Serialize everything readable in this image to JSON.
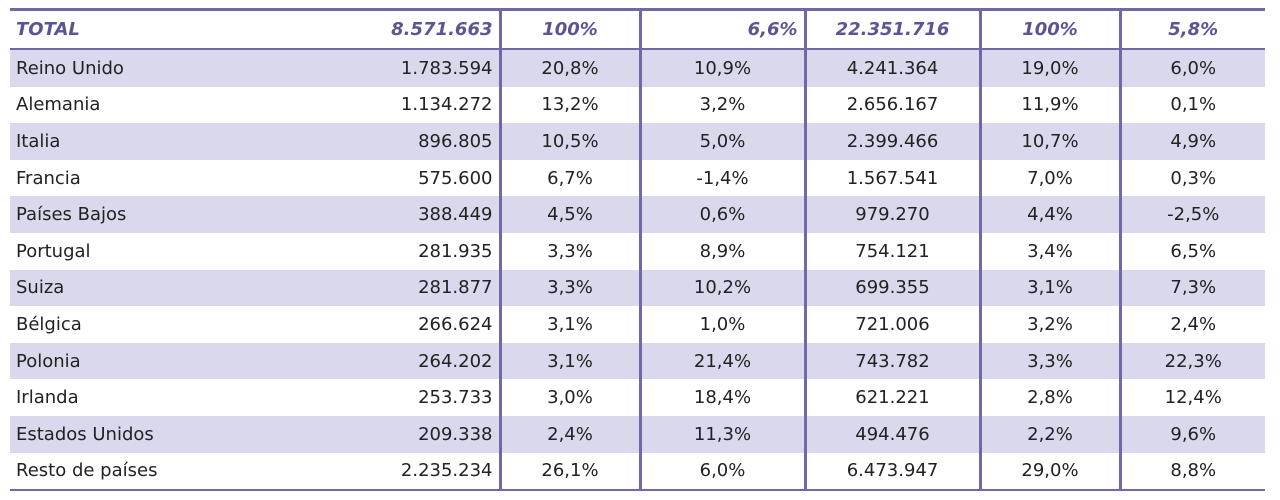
{
  "total": {
    "label": "TOTAL",
    "values": [
      "8.571.663",
      "100%",
      "6,6%",
      "22.351.716",
      "100%",
      "5,8%"
    ]
  },
  "rows": [
    {
      "label": "Reino Unido",
      "values": [
        "1.783.594",
        "20,8%",
        "10,9%",
        "4.241.364",
        "19,0%",
        "6,0%"
      ]
    },
    {
      "label": "Alemania",
      "values": [
        "1.134.272",
        "13,2%",
        "3,2%",
        "2.656.167",
        "11,9%",
        "0,1%"
      ]
    },
    {
      "label": "Italia",
      "values": [
        "896.805",
        "10,5%",
        "5,0%",
        "2.399.466",
        "10,7%",
        "4,9%"
      ]
    },
    {
      "label": "Francia",
      "values": [
        "575.600",
        "6,7%",
        "-1,4%",
        "1.567.541",
        "7,0%",
        "0,3%"
      ]
    },
    {
      "label": "Países Bajos",
      "values": [
        "388.449",
        "4,5%",
        "0,6%",
        "979.270",
        "4,4%",
        "-2,5%"
      ]
    },
    {
      "label": "Portugal",
      "values": [
        "281.935",
        "3,3%",
        "8,9%",
        "754.121",
        "3,4%",
        "6,5%"
      ]
    },
    {
      "label": "Suiza",
      "values": [
        "281.877",
        "3,3%",
        "10,2%",
        "699.355",
        "3,1%",
        "7,3%"
      ]
    },
    {
      "label": "Bélgica",
      "values": [
        "266.624",
        "3,1%",
        "1,0%",
        "721.006",
        "3,2%",
        "2,4%"
      ]
    },
    {
      "label": "Polonia",
      "values": [
        "264.202",
        "3,1%",
        "21,4%",
        "743.782",
        "3,3%",
        "22,3%"
      ]
    },
    {
      "label": "Irlanda",
      "values": [
        "253.733",
        "3,0%",
        "18,4%",
        "621.221",
        "2,8%",
        "12,4%"
      ]
    },
    {
      "label": "Estados Unidos",
      "values": [
        "209.338",
        "2,4%",
        "11,3%",
        "494.476",
        "2,2%",
        "9,6%"
      ]
    },
    {
      "label": "Resto de países",
      "values": [
        "2.235.234",
        "26,1%",
        "6,0%",
        "6.473.947",
        "29,0%",
        "8,8%"
      ]
    }
  ],
  "colors": {
    "accent": "#6f6aa6",
    "header_text": "#5a5594",
    "row_shade": "#d9d8ec"
  }
}
